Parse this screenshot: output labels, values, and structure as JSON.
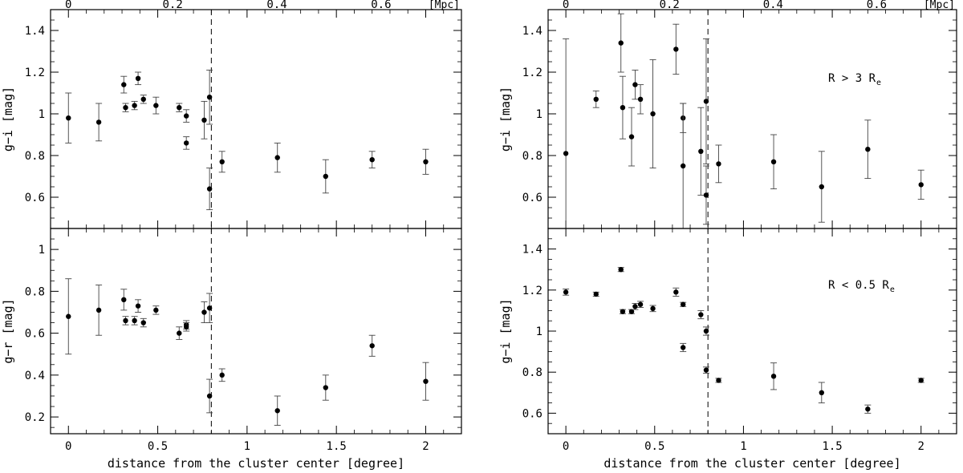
{
  "figure": {
    "xlabel": "distance from the cluster center [degree]",
    "top_axis_unit": "[Mpc]",
    "x_ticks": [
      0,
      0.5,
      1,
      1.5,
      2
    ],
    "x_tick_labels": [
      "0",
      "0.5",
      "1",
      "1.5",
      "2"
    ],
    "x_range": [
      -0.1,
      2.2
    ],
    "top_ticks_mpc": [
      0,
      0.2,
      0.4,
      0.6
    ],
    "top_tick_labels": [
      "0",
      "0.2",
      "0.4",
      "0.6"
    ],
    "deg_per_mpc": 2.917,
    "dashed_line_x": 0.8
  },
  "chart_data": [
    {
      "panel": "left-top",
      "type": "scatter",
      "ylabel": "g−i [mag]",
      "ylim": [
        0.45,
        1.5
      ],
      "y_ticks": [
        0.6,
        0.8,
        1.0,
        1.2,
        1.4
      ],
      "y_tick_labels": [
        "0.6",
        "0.8",
        "1",
        "1.2",
        "1.4"
      ],
      "annotation": "",
      "points": [
        {
          "x": 0.0,
          "y": 0.98,
          "err": 0.12
        },
        {
          "x": 0.17,
          "y": 0.96,
          "err": 0.09
        },
        {
          "x": 0.31,
          "y": 1.14,
          "err": 0.04
        },
        {
          "x": 0.32,
          "y": 1.03,
          "err": 0.02
        },
        {
          "x": 0.37,
          "y": 1.04,
          "err": 0.02
        },
        {
          "x": 0.39,
          "y": 1.17,
          "err": 0.03
        },
        {
          "x": 0.42,
          "y": 1.07,
          "err": 0.02
        },
        {
          "x": 0.49,
          "y": 1.04,
          "err": 0.04
        },
        {
          "x": 0.62,
          "y": 1.03,
          "err": 0.02
        },
        {
          "x": 0.66,
          "y": 0.99,
          "err": 0.03
        },
        {
          "x": 0.66,
          "y": 0.86,
          "err": 0.03
        },
        {
          "x": 0.76,
          "y": 0.97,
          "err": 0.09
        },
        {
          "x": 0.79,
          "y": 1.08,
          "err": 0.13
        },
        {
          "x": 0.79,
          "y": 0.64,
          "err": 0.1
        },
        {
          "x": 0.86,
          "y": 0.77,
          "err": 0.05
        },
        {
          "x": 1.17,
          "y": 0.79,
          "err": 0.07
        },
        {
          "x": 1.44,
          "y": 0.7,
          "err": 0.08
        },
        {
          "x": 1.7,
          "y": 0.78,
          "err": 0.04
        },
        {
          "x": 2.0,
          "y": 0.77,
          "err": 0.06
        }
      ]
    },
    {
      "panel": "left-bottom",
      "type": "scatter",
      "ylabel": "g−r [mag]",
      "ylim": [
        0.12,
        1.1
      ],
      "y_ticks": [
        0.2,
        0.4,
        0.6,
        0.8,
        1.0
      ],
      "y_tick_labels": [
        "0.2",
        "0.4",
        "0.6",
        "0.8",
        "1"
      ],
      "annotation": "",
      "points": [
        {
          "x": 0.0,
          "y": 0.68,
          "err": 0.18
        },
        {
          "x": 0.17,
          "y": 0.71,
          "err": 0.12
        },
        {
          "x": 0.31,
          "y": 0.76,
          "err": 0.05
        },
        {
          "x": 0.32,
          "y": 0.66,
          "err": 0.02
        },
        {
          "x": 0.37,
          "y": 0.66,
          "err": 0.02
        },
        {
          "x": 0.39,
          "y": 0.73,
          "err": 0.03
        },
        {
          "x": 0.42,
          "y": 0.65,
          "err": 0.02
        },
        {
          "x": 0.49,
          "y": 0.71,
          "err": 0.02
        },
        {
          "x": 0.62,
          "y": 0.6,
          "err": 0.03
        },
        {
          "x": 0.66,
          "y": 0.64,
          "err": 0.02
        },
        {
          "x": 0.66,
          "y": 0.63,
          "err": 0.02
        },
        {
          "x": 0.76,
          "y": 0.7,
          "err": 0.05
        },
        {
          "x": 0.79,
          "y": 0.72,
          "err": 0.07
        },
        {
          "x": 0.79,
          "y": 0.3,
          "err": 0.08
        },
        {
          "x": 0.86,
          "y": 0.4,
          "err": 0.03
        },
        {
          "x": 1.17,
          "y": 0.23,
          "err": 0.07
        },
        {
          "x": 1.44,
          "y": 0.34,
          "err": 0.06
        },
        {
          "x": 1.7,
          "y": 0.54,
          "err": 0.05
        },
        {
          "x": 2.0,
          "y": 0.37,
          "err": 0.09
        }
      ]
    },
    {
      "panel": "right-top",
      "type": "scatter",
      "ylabel": "g−i [mag]",
      "ylim": [
        0.45,
        1.5
      ],
      "y_ticks": [
        0.6,
        0.8,
        1.0,
        1.2,
        1.4
      ],
      "y_tick_labels": [
        "0.6",
        "0.8",
        "1",
        "1.2",
        "1.4"
      ],
      "annotation": "R > 3 R",
      "annotation_sub": "e",
      "points": [
        {
          "x": 0.0,
          "y": 0.81,
          "err": 0.55
        },
        {
          "x": 0.17,
          "y": 1.07,
          "err": 0.04
        },
        {
          "x": 0.31,
          "y": 1.34,
          "err": 0.14
        },
        {
          "x": 0.32,
          "y": 1.03,
          "err": 0.15
        },
        {
          "x": 0.37,
          "y": 0.89,
          "err": 0.14
        },
        {
          "x": 0.39,
          "y": 1.14,
          "err": 0.07
        },
        {
          "x": 0.42,
          "y": 1.07,
          "err": 0.07
        },
        {
          "x": 0.49,
          "y": 1.0,
          "err": 0.26
        },
        {
          "x": 0.62,
          "y": 1.31,
          "err": 0.12
        },
        {
          "x": 0.66,
          "y": 0.98,
          "err": 0.07
        },
        {
          "x": 0.66,
          "y": 0.75,
          "err": 0.3
        },
        {
          "x": 0.76,
          "y": 0.82,
          "err": 0.21
        },
        {
          "x": 0.79,
          "y": 1.06,
          "err": 0.3
        },
        {
          "x": 0.79,
          "y": 0.61,
          "err": 0.14
        },
        {
          "x": 0.86,
          "y": 0.76,
          "err": 0.09
        },
        {
          "x": 1.17,
          "y": 0.77,
          "err": 0.13
        },
        {
          "x": 1.44,
          "y": 0.65,
          "err": 0.17
        },
        {
          "x": 1.7,
          "y": 0.83,
          "err": 0.14
        },
        {
          "x": 2.0,
          "y": 0.66,
          "err": 0.07
        }
      ]
    },
    {
      "panel": "right-bottom",
      "type": "scatter",
      "ylabel": "g−i [mag]",
      "ylim": [
        0.5,
        1.5
      ],
      "y_ticks": [
        0.6,
        0.8,
        1.0,
        1.2,
        1.4
      ],
      "y_tick_labels": [
        "0.6",
        "0.8",
        "1",
        "1.2",
        "1.4"
      ],
      "annotation": "R < 0.5 R",
      "annotation_sub": "e",
      "points": [
        {
          "x": 0.0,
          "y": 1.19,
          "err": 0.015
        },
        {
          "x": 0.17,
          "y": 1.18,
          "err": 0.01
        },
        {
          "x": 0.31,
          "y": 1.3,
          "err": 0.01
        },
        {
          "x": 0.32,
          "y": 1.095,
          "err": 0.01
        },
        {
          "x": 0.37,
          "y": 1.095,
          "err": 0.01
        },
        {
          "x": 0.39,
          "y": 1.12,
          "err": 0.015
        },
        {
          "x": 0.42,
          "y": 1.13,
          "err": 0.015
        },
        {
          "x": 0.49,
          "y": 1.11,
          "err": 0.015
        },
        {
          "x": 0.62,
          "y": 1.19,
          "err": 0.02
        },
        {
          "x": 0.66,
          "y": 1.13,
          "err": 0.01
        },
        {
          "x": 0.66,
          "y": 0.92,
          "err": 0.02
        },
        {
          "x": 0.76,
          "y": 1.08,
          "err": 0.02
        },
        {
          "x": 0.79,
          "y": 1.0,
          "err": 0.02
        },
        {
          "x": 0.79,
          "y": 0.81,
          "err": 0.015
        },
        {
          "x": 0.86,
          "y": 0.76,
          "err": 0.01
        },
        {
          "x": 1.17,
          "y": 0.78,
          "err": 0.065
        },
        {
          "x": 1.44,
          "y": 0.7,
          "err": 0.05
        },
        {
          "x": 1.7,
          "y": 0.62,
          "err": 0.02
        },
        {
          "x": 2.0,
          "y": 0.76,
          "err": 0.01
        }
      ]
    }
  ]
}
